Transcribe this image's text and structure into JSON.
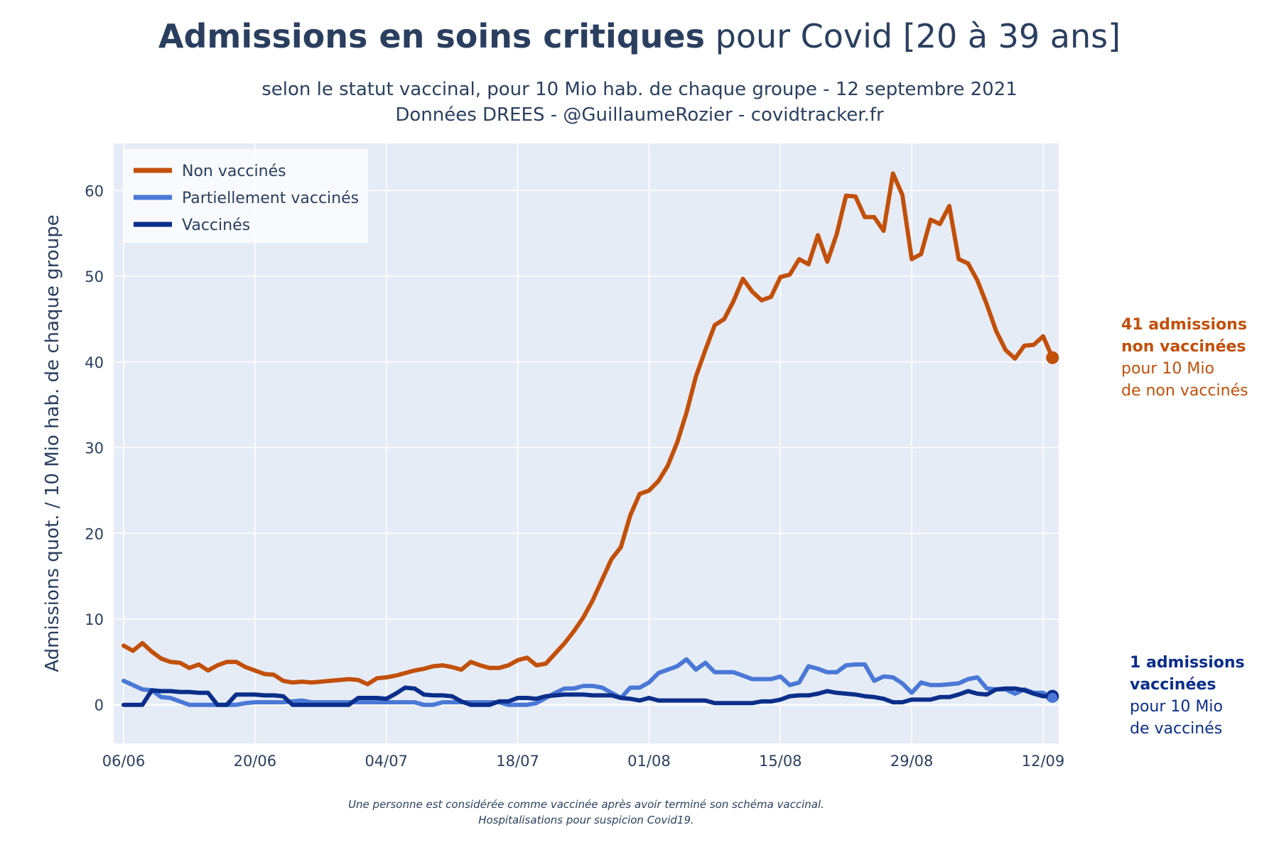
{
  "title": {
    "bold": "Admissions en soins critiques",
    "rest": "pour Covid [20 à 39 ans]"
  },
  "subtitle": {
    "line1": "selon le statut vaccinal, pour 10 Mio hab. de chaque groupe - 12 septembre 2021",
    "line2": "Données DREES - @GuillaumeRozier - covidtracker.fr"
  },
  "footnote": {
    "line1": "Une personne est considérée comme vaccinée après avoir terminé son schéma vaccinal.",
    "line2": "Hospitalisations pour suspicion Covid19."
  },
  "annotations": {
    "non_vaccines": {
      "line1": "41 admissions",
      "line2": "non vaccinées",
      "line3": "pour 10 Mio",
      "line4": "de non vaccinés"
    },
    "vaccines": {
      "line1": "1 admissions",
      "line2": "vaccinées",
      "line3": "pour 10 Mio",
      "line4": "de vaccinés"
    }
  },
  "colors": {
    "non_vaccines": "#c2500a",
    "partiel": "#4a78d6",
    "vaccines": "#0b2e8a",
    "plot_bg": "#e5ecf6",
    "grid": "#ffffff"
  },
  "chart_data": {
    "type": "line",
    "ylabel": "Admissions quot. / 10 Mio hab. de chaque groupe",
    "xlabel": "",
    "ylim": [
      -4.5,
      65.5
    ],
    "yticks": [
      0,
      10,
      20,
      30,
      40,
      50,
      60
    ],
    "x_start": "2021-06-06",
    "x_end": "2021-09-12",
    "xticks": [
      {
        "date": "2021-06-06",
        "label": "06/06"
      },
      {
        "date": "2021-06-20",
        "label": "20/06"
      },
      {
        "date": "2021-07-04",
        "label": "04/07"
      },
      {
        "date": "2021-07-18",
        "label": "18/07"
      },
      {
        "date": "2021-08-01",
        "label": "01/08"
      },
      {
        "date": "2021-08-15",
        "label": "15/08"
      },
      {
        "date": "2021-08-29",
        "label": "29/08"
      },
      {
        "date": "2021-09-12",
        "label": "12/09"
      }
    ],
    "grid": true,
    "legend_position": "top-left",
    "series": [
      {
        "name": "Non vaccinés",
        "color": "#c2500a",
        "values": [
          6.9,
          6.3,
          7.2,
          6.2,
          5.4,
          5.0,
          4.9,
          4.3,
          4.7,
          4.0,
          4.6,
          5.0,
          5.0,
          4.4,
          4.0,
          3.6,
          3.5,
          2.8,
          2.6,
          2.7,
          2.6,
          2.7,
          2.8,
          2.9,
          3.0,
          2.9,
          2.4,
          3.1,
          3.2,
          3.4,
          3.7,
          4.0,
          4.2,
          4.5,
          4.6,
          4.4,
          4.1,
          5.0,
          4.6,
          4.3,
          4.3,
          4.6,
          5.2,
          5.5,
          4.6,
          4.8,
          6.0,
          7.2,
          8.6,
          10.2,
          12.2,
          14.6,
          17.0,
          18.4,
          22.1,
          24.6,
          25.0,
          26.1,
          27.9,
          30.6,
          34.1,
          38.3,
          41.4,
          44.3,
          45.0,
          47.1,
          49.7,
          48.2,
          47.2,
          47.6,
          49.9,
          50.2,
          52.0,
          51.4,
          54.8,
          51.7,
          54.9,
          59.4,
          59.3,
          56.9,
          56.9,
          55.3,
          62.0,
          59.5,
          52.0,
          52.6,
          56.6,
          56.1,
          58.2,
          52.0,
          51.5,
          49.5,
          46.7,
          43.6,
          41.4,
          40.4,
          41.9,
          42.0,
          43.0,
          40.5
        ]
      },
      {
        "name": "Partiellement vaccinés",
        "color": "#4a78d6",
        "values": [
          2.8,
          2.3,
          1.8,
          1.7,
          0.9,
          0.8,
          0.4,
          0.0,
          0.0,
          0.0,
          0.0,
          0.0,
          0.0,
          0.2,
          0.3,
          0.3,
          0.3,
          0.3,
          0.4,
          0.5,
          0.3,
          0.3,
          0.3,
          0.3,
          0.3,
          0.3,
          0.3,
          0.3,
          0.3,
          0.3,
          0.3,
          0.3,
          0.0,
          0.0,
          0.3,
          0.3,
          0.3,
          0.3,
          0.3,
          0.3,
          0.3,
          0.0,
          0.0,
          0.0,
          0.2,
          0.8,
          1.4,
          1.9,
          1.9,
          2.2,
          2.2,
          2.0,
          1.4,
          0.8,
          2.0,
          2.0,
          2.6,
          3.7,
          4.1,
          4.5,
          5.3,
          4.1,
          4.9,
          3.8,
          3.8,
          3.8,
          3.4,
          3.0,
          3.0,
          3.0,
          3.3,
          2.3,
          2.6,
          4.5,
          4.2,
          3.8,
          3.8,
          4.6,
          4.7,
          4.7,
          2.8,
          3.3,
          3.2,
          2.5,
          1.4,
          2.6,
          2.3,
          2.3,
          2.4,
          2.5,
          3.0,
          3.2,
          1.9,
          1.8,
          1.8,
          1.3,
          1.8,
          1.4,
          1.4,
          0.8
        ]
      },
      {
        "name": "Vaccinés",
        "color": "#0b2e8a",
        "values": [
          0.0,
          0.0,
          0.0,
          1.7,
          1.6,
          1.6,
          1.5,
          1.5,
          1.4,
          1.4,
          0.0,
          0.0,
          1.2,
          1.2,
          1.2,
          1.1,
          1.1,
          1.0,
          0.0,
          0.0,
          0.0,
          0.0,
          0.0,
          0.0,
          0.0,
          0.8,
          0.8,
          0.8,
          0.7,
          1.3,
          2.0,
          1.9,
          1.2,
          1.1,
          1.1,
          1.0,
          0.4,
          0.0,
          0.0,
          0.0,
          0.4,
          0.4,
          0.8,
          0.8,
          0.7,
          1.0,
          1.1,
          1.2,
          1.2,
          1.2,
          1.1,
          1.1,
          1.1,
          0.8,
          0.7,
          0.5,
          0.8,
          0.5,
          0.5,
          0.5,
          0.5,
          0.5,
          0.5,
          0.2,
          0.2,
          0.2,
          0.2,
          0.2,
          0.4,
          0.4,
          0.6,
          1.0,
          1.1,
          1.1,
          1.3,
          1.6,
          1.4,
          1.3,
          1.2,
          1.0,
          0.9,
          0.7,
          0.3,
          0.3,
          0.6,
          0.6,
          0.6,
          0.9,
          0.9,
          1.2,
          1.6,
          1.3,
          1.2,
          1.8,
          1.9,
          1.9,
          1.7,
          1.3,
          1.0,
          1.0
        ]
      }
    ]
  }
}
